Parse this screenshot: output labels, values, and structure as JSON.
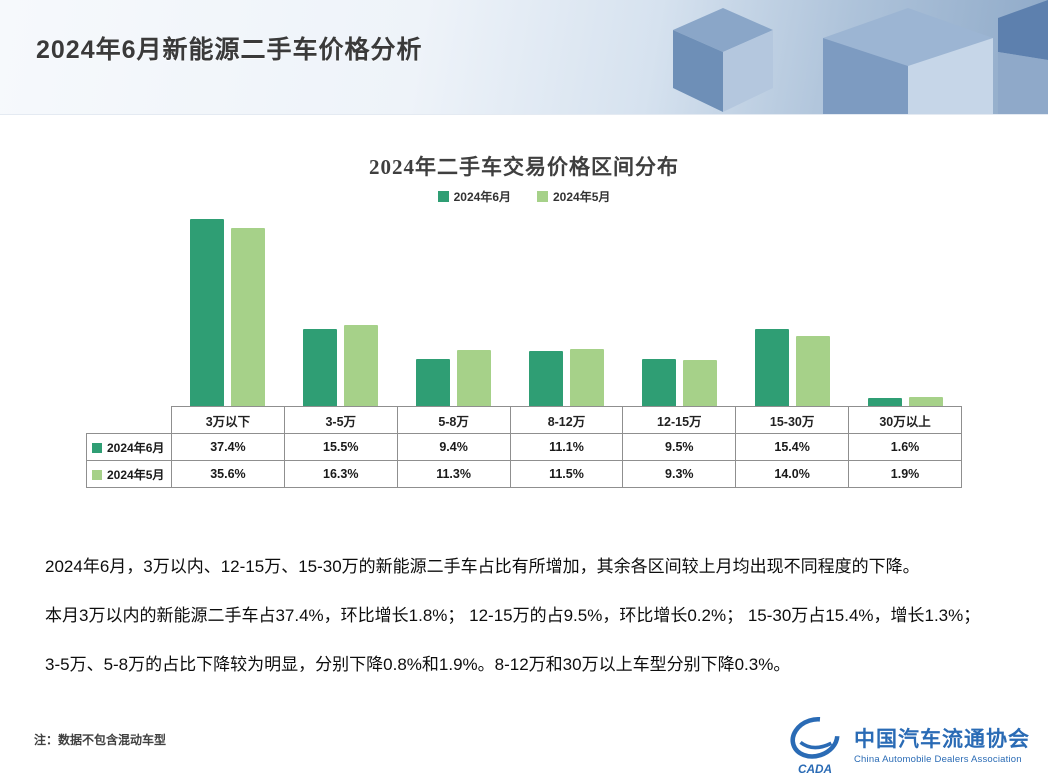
{
  "header": {
    "title": "2024年6月新能源二手车价格分析"
  },
  "chart": {
    "title": "2024年二手车交易价格区间分布",
    "chart_data": {
      "type": "bar",
      "categories": [
        "3万以下",
        "3-5万",
        "5-8万",
        "8-12万",
        "12-15万",
        "15-30万",
        "30万以上"
      ],
      "series": [
        {
          "name": "2024年6月",
          "color": "#2f9e74",
          "values": [
            37.4,
            15.5,
            9.4,
            11.1,
            9.5,
            15.4,
            1.6
          ]
        },
        {
          "name": "2024年5月",
          "color": "#a6d189",
          "values": [
            35.6,
            16.3,
            11.3,
            11.5,
            9.3,
            14.0,
            1.9
          ]
        }
      ],
      "ylim": [
        0,
        40
      ],
      "value_format": "percent",
      "grid": false,
      "legend_position": "top",
      "data_table_shown": true
    }
  },
  "analysis": {
    "paragraphs": [
      "2024年6月，3万以内、12-15万、15-30万的新能源二手车占比有所增加，其余各区间较上月均出现不同程度的下降。",
      "本月3万以内的新能源二手车占37.4%，环比增长1.8%； 12-15万的占9.5%，环比增长0.2%； 15-30万占15.4%，增长1.3%；",
      "3-5万、5-8万的占比下降较为明显，分别下降0.8%和1.9%。8-12万和30万以上车型分别下降0.3%。"
    ]
  },
  "footer": {
    "note": "注：数据不包含混动车型",
    "logo": {
      "acronym": "CADA",
      "name_cn": "中国汽车流通协会",
      "name_en": "China Automobile Dealers Association",
      "color": "#2a6bb5"
    }
  }
}
